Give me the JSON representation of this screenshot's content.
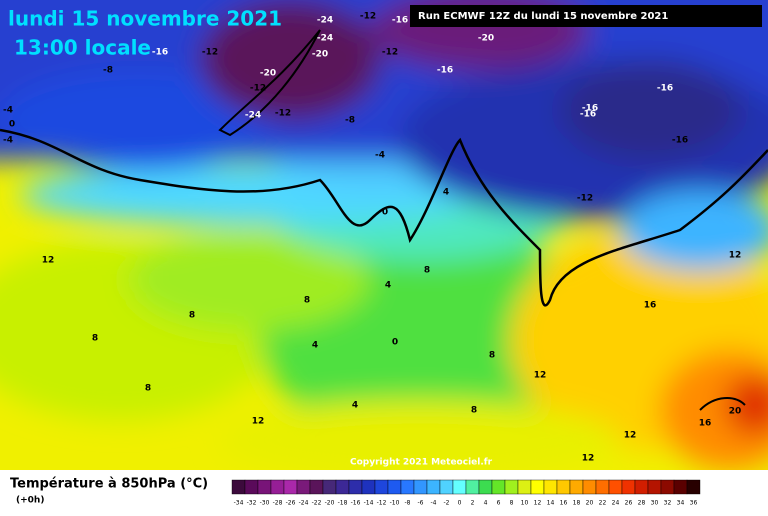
{
  "header": {
    "title": "lundi 15 novembre 2021",
    "subtitle": "13:00 locale",
    "run": "Run ECMWF 12Z du lundi 15 novembre 2021"
  },
  "contour_labels": [
    -24,
    -12,
    -16,
    -24,
    -20,
    -12,
    -16,
    -12,
    -8,
    -20,
    -24,
    -12,
    -8,
    -12,
    -16,
    -20,
    -16,
    -16,
    -16,
    -16,
    -12,
    -4,
    -4,
    0,
    -4,
    0,
    4,
    12,
    8,
    8,
    8,
    4,
    4,
    0,
    8,
    8,
    8,
    12,
    12,
    12,
    16,
    12,
    20,
    16,
    4,
    12,
    8
  ],
  "copyright": "Copyright 2021 Meteociel.fr",
  "legend": {
    "title": "Température à 850hPa (°C)",
    "step": "(+0h)",
    "scale": [
      -34,
      -32,
      -30,
      -28,
      -26,
      -24,
      -22,
      -20,
      -18,
      -16,
      -14,
      -12,
      -10,
      -8,
      -6,
      -4,
      -2,
      0,
      2,
      4,
      6,
      8,
      10,
      12,
      14,
      16,
      18,
      20,
      22,
      24,
      26,
      28,
      30,
      32,
      34,
      36
    ],
    "colors": [
      "#3c0a3c",
      "#5a0a5a",
      "#781478",
      "#961e96",
      "#aa28aa",
      "#7a1a7a",
      "#5a145a",
      "#462878",
      "#3c2896",
      "#2d2daa",
      "#1e32be",
      "#1e46dc",
      "#1e5af0",
      "#2878ff",
      "#3296ff",
      "#3cb4ff",
      "#50d2ff",
      "#64ffff",
      "#50f0a0",
      "#3cdc50",
      "#64e628",
      "#a0f01e",
      "#dcf014",
      "#ffff00",
      "#ffe600",
      "#ffc800",
      "#ffaa00",
      "#ff8c00",
      "#ff6e00",
      "#ff5000",
      "#f03200",
      "#d21e00",
      "#b41400",
      "#8c0a00",
      "#5a0000",
      "#280000"
    ]
  }
}
